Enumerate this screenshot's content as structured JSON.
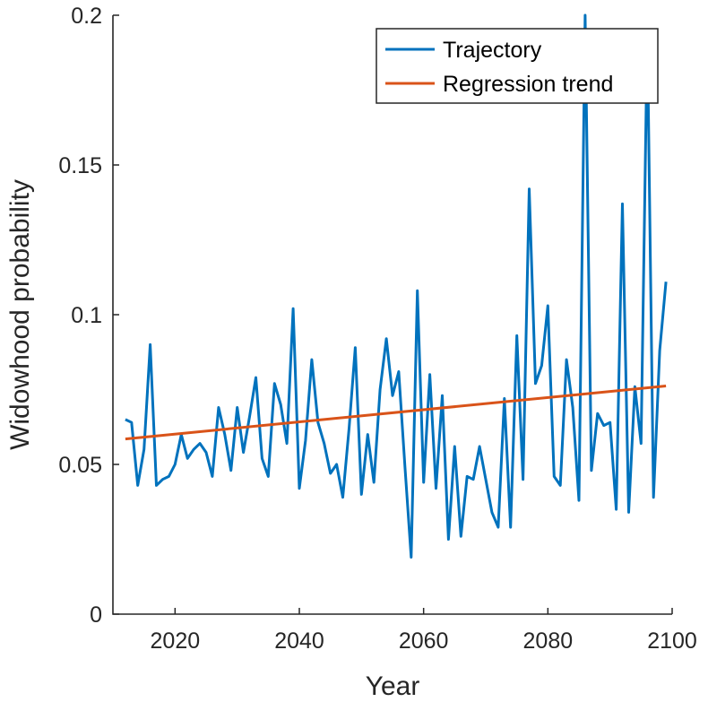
{
  "chart_data": {
    "type": "line",
    "xlabel": "Year",
    "ylabel": "Widowhood probability",
    "xlim": [
      2010,
      2100
    ],
    "ylim": [
      0,
      0.2
    ],
    "xticks": [
      {
        "value": 2020,
        "label": "2020"
      },
      {
        "value": 2040,
        "label": "2040"
      },
      {
        "value": 2060,
        "label": "2060"
      },
      {
        "value": 2080,
        "label": "2080"
      },
      {
        "value": 2100,
        "label": "2100"
      }
    ],
    "yticks": [
      {
        "value": 0,
        "label": "0"
      },
      {
        "value": 0.05,
        "label": "0.05"
      },
      {
        "value": 0.1,
        "label": "0.1"
      },
      {
        "value": 0.15,
        "label": "0.15"
      },
      {
        "value": 0.2,
        "label": "0.2"
      }
    ],
    "grid": false,
    "legend_position": "top-right",
    "series": [
      {
        "name": "Trajectory",
        "color": "#0072BD",
        "x": [
          2012,
          2013,
          2014,
          2015,
          2016,
          2017,
          2018,
          2019,
          2020,
          2021,
          2022,
          2023,
          2024,
          2025,
          2026,
          2027,
          2028,
          2029,
          2030,
          2031,
          2032,
          2033,
          2034,
          2035,
          2036,
          2037,
          2038,
          2039,
          2040,
          2041,
          2042,
          2043,
          2044,
          2045,
          2046,
          2047,
          2048,
          2049,
          2050,
          2051,
          2052,
          2053,
          2054,
          2055,
          2056,
          2057,
          2058,
          2059,
          2060,
          2061,
          2062,
          2063,
          2064,
          2065,
          2066,
          2067,
          2068,
          2069,
          2070,
          2071,
          2072,
          2073,
          2074,
          2075,
          2076,
          2077,
          2078,
          2079,
          2080,
          2081,
          2082,
          2083,
          2084,
          2085,
          2086,
          2087,
          2088,
          2089,
          2090,
          2091,
          2092,
          2093,
          2094,
          2095,
          2096,
          2097,
          2098,
          2099
        ],
        "y": [
          0.065,
          0.064,
          0.043,
          0.055,
          0.09,
          0.043,
          0.045,
          0.046,
          0.05,
          0.06,
          0.052,
          0.055,
          0.057,
          0.054,
          0.046,
          0.069,
          0.06,
          0.048,
          0.069,
          0.054,
          0.066,
          0.079,
          0.052,
          0.046,
          0.077,
          0.07,
          0.057,
          0.102,
          0.042,
          0.058,
          0.085,
          0.064,
          0.057,
          0.047,
          0.05,
          0.039,
          0.062,
          0.089,
          0.04,
          0.06,
          0.044,
          0.075,
          0.092,
          0.073,
          0.081,
          0.049,
          0.019,
          0.108,
          0.044,
          0.08,
          0.042,
          0.073,
          0.025,
          0.056,
          0.026,
          0.046,
          0.045,
          0.056,
          0.045,
          0.034,
          0.029,
          0.072,
          0.029,
          0.093,
          0.045,
          0.142,
          0.077,
          0.083,
          0.103,
          0.046,
          0.043,
          0.085,
          0.069,
          0.038,
          0.2,
          0.048,
          0.067,
          0.063,
          0.064,
          0.035,
          0.137,
          0.034,
          0.076,
          0.057,
          0.195,
          0.039,
          0.088,
          0.111
        ]
      },
      {
        "name": "Regression trend",
        "color": "#D95319",
        "x": [
          2012,
          2099
        ],
        "y": [
          0.0585,
          0.0762
        ]
      }
    ]
  }
}
